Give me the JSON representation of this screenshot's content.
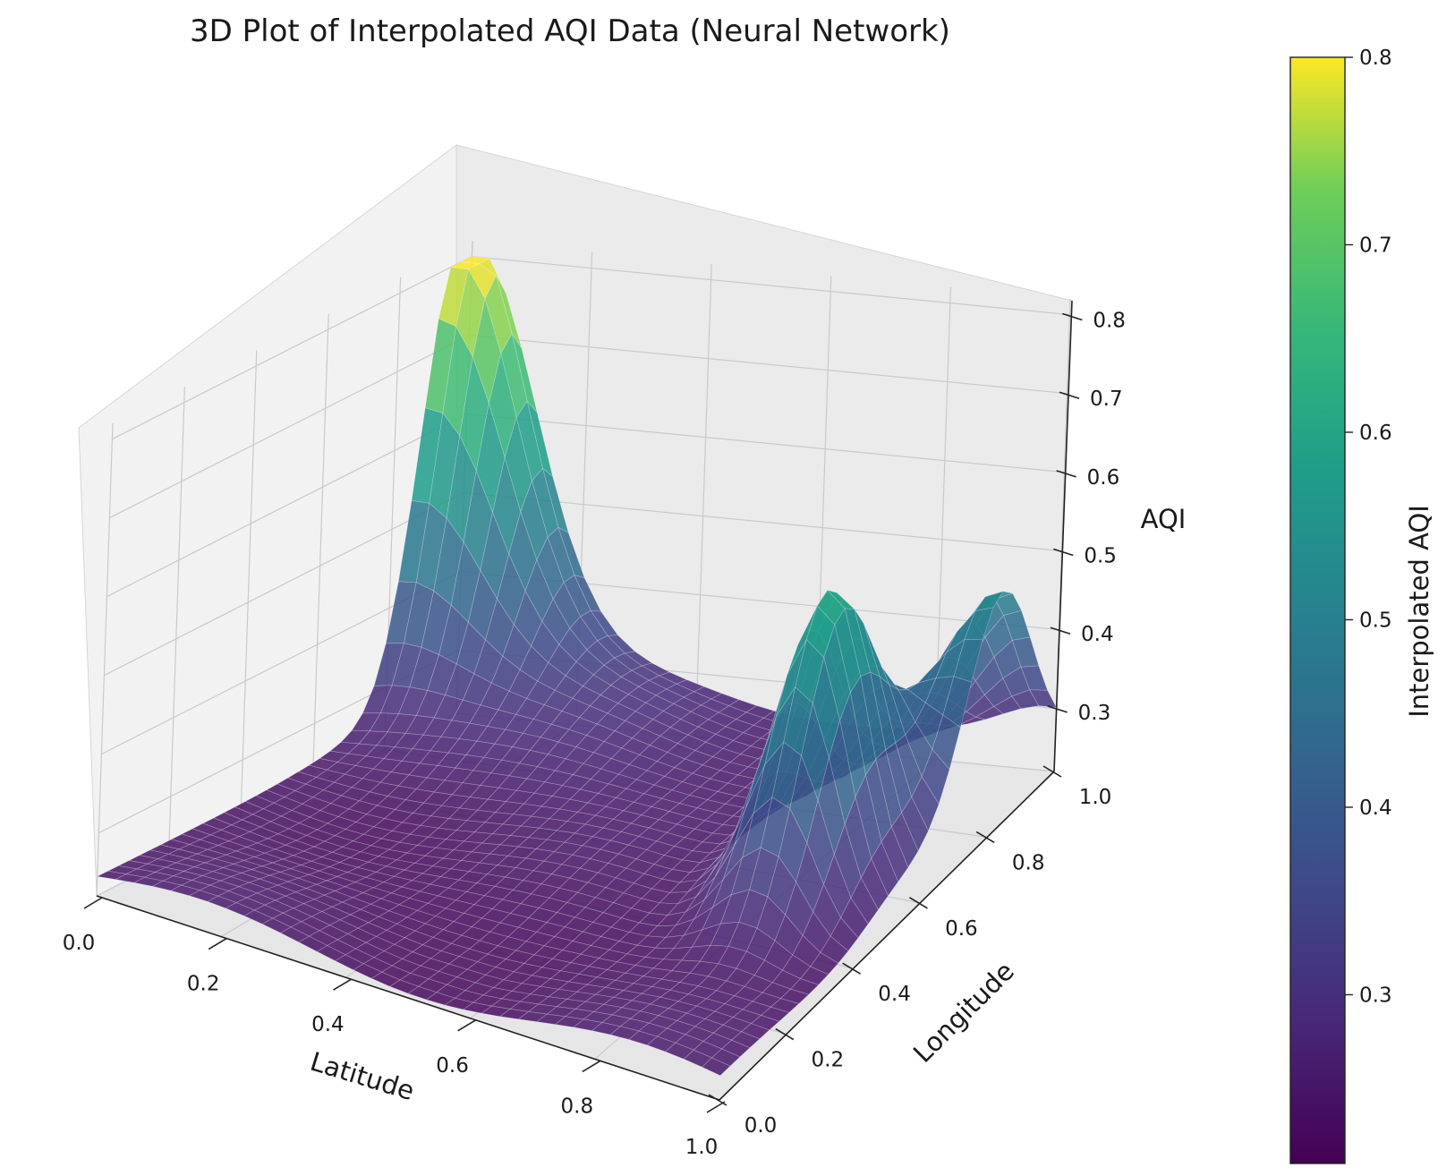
{
  "chart_data": {
    "type": "surface3d",
    "title": "3D Plot of Interpolated AQI Data (Neural Network)",
    "xlabel": "Latitude",
    "ylabel": "Longitude",
    "zlabel": "AQI",
    "xlim": [
      0.0,
      1.0
    ],
    "ylim": [
      0.0,
      1.0
    ],
    "zlim": [
      0.22,
      0.82
    ],
    "x_ticks": [
      "0.0",
      "0.2",
      "0.4",
      "0.6",
      "0.8",
      "1.0"
    ],
    "y_ticks": [
      "0.0",
      "0.2",
      "0.4",
      "0.6",
      "0.8",
      "1.0"
    ],
    "z_ticks": [
      "0.3",
      "0.4",
      "0.5",
      "0.6",
      "0.7",
      "0.8"
    ],
    "colormap": "viridis",
    "surface_alpha": 0.8,
    "grid": true,
    "surface_features": [
      {
        "x": 0.0,
        "y": 0.97,
        "z": 0.8,
        "kind": "peak"
      },
      {
        "x": 0.86,
        "y": 0.55,
        "z": 0.62,
        "kind": "peak"
      },
      {
        "x": 1.0,
        "y": 0.82,
        "z": 0.55,
        "kind": "ridge"
      },
      {
        "x": 0.5,
        "y": 0.3,
        "z": 0.23,
        "kind": "valley"
      }
    ],
    "colorbar": {
      "label": "Interpolated AQI",
      "range": [
        0.21,
        0.8
      ],
      "ticks": [
        "0.3",
        "0.4",
        "0.5",
        "0.6",
        "0.7",
        "0.8"
      ]
    }
  }
}
